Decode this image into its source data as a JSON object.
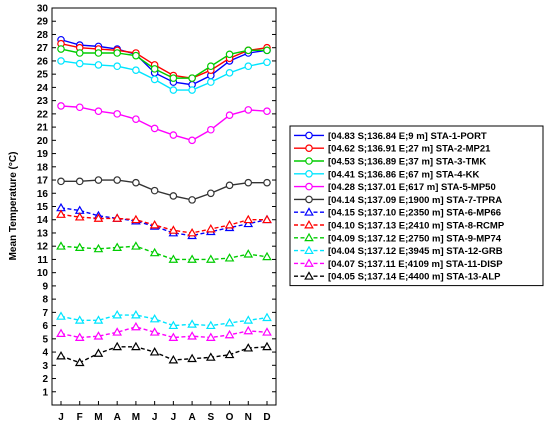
{
  "chart_data": {
    "type": "line",
    "title": "",
    "xlabel": "",
    "ylabel": "Mean Temperature (°C)",
    "ylim": [
      0,
      30
    ],
    "yticks": [
      1,
      2,
      3,
      4,
      5,
      6,
      7,
      8,
      9,
      10,
      11,
      12,
      13,
      14,
      15,
      16,
      17,
      18,
      19,
      20,
      21,
      22,
      23,
      24,
      25,
      26,
      27,
      28,
      29,
      30
    ],
    "categories": [
      "J",
      "F",
      "M",
      "A",
      "M",
      "J",
      "J",
      "A",
      "S",
      "O",
      "N",
      "D"
    ],
    "grid": false,
    "legend_position": "right",
    "series": [
      {
        "name": "[04.83 S;136.84 E;9 m] STA-1-PORT",
        "color": "#0000ff",
        "dashed": false,
        "marker": "circle",
        "values": [
          27.6,
          27.2,
          27.1,
          26.9,
          26.5,
          25.1,
          24.4,
          24.2,
          24.9,
          26.0,
          26.6,
          26.8
        ]
      },
      {
        "name": "[04.62 S;136.91 E;27 m] STA-2-MP21",
        "color": "#ff0000",
        "dashed": false,
        "marker": "circle",
        "values": [
          27.3,
          27.0,
          26.9,
          26.8,
          26.6,
          25.7,
          24.9,
          24.7,
          25.3,
          26.2,
          26.8,
          27.0
        ]
      },
      {
        "name": "[04.53 S;136.89 E;37 m] STA-3-TMK",
        "color": "#00cc00",
        "dashed": false,
        "marker": "circle",
        "values": [
          26.9,
          26.6,
          26.6,
          26.6,
          26.4,
          25.4,
          24.7,
          24.7,
          25.6,
          26.5,
          26.8,
          26.8
        ]
      },
      {
        "name": "[04.41 S;136.86 E;67 m] STA-4-KK",
        "color": "#00e5ff",
        "dashed": false,
        "marker": "circle",
        "values": [
          26.0,
          25.8,
          25.7,
          25.6,
          25.3,
          24.6,
          23.8,
          23.8,
          24.4,
          25.1,
          25.6,
          25.9
        ]
      },
      {
        "name": "[04.28 S;137.01 E;617 m] STA-5-MP50",
        "color": "#ff00ff",
        "dashed": false,
        "marker": "circle",
        "values": [
          22.6,
          22.5,
          22.2,
          22.0,
          21.6,
          20.9,
          20.4,
          20.0,
          20.8,
          21.9,
          22.3,
          22.2
        ]
      },
      {
        "name": "[04.14 S;137.09 E;1900 m] STA-7-TPRA",
        "color": "#333333",
        "dashed": false,
        "marker": "circle",
        "values": [
          16.9,
          16.9,
          17.0,
          17.0,
          16.8,
          16.2,
          15.8,
          15.5,
          16.0,
          16.6,
          16.8,
          16.8
        ]
      },
      {
        "name": "[04.15 S;137.10 E;2350 m] STA-6-MP66",
        "color": "#0000ff",
        "dashed": true,
        "marker": "triangle",
        "values": [
          14.9,
          14.7,
          14.3,
          14.1,
          13.9,
          13.5,
          13.0,
          12.8,
          13.1,
          13.4,
          13.7,
          14.0
        ]
      },
      {
        "name": "[04.10 S;137.13 E;2410 m] STA-8-RCMP",
        "color": "#ff0000",
        "dashed": true,
        "marker": "triangle",
        "values": [
          14.4,
          14.2,
          14.1,
          14.1,
          14.0,
          13.6,
          13.2,
          13.0,
          13.3,
          13.6,
          14.0,
          14.0
        ]
      },
      {
        "name": "[04.09 S;137.12 E;2750 m] STA-9-MP74",
        "color": "#00cc00",
        "dashed": true,
        "marker": "triangle",
        "values": [
          12.0,
          11.9,
          11.8,
          11.9,
          12.0,
          11.5,
          11.0,
          11.0,
          11.0,
          11.1,
          11.4,
          11.2
        ]
      },
      {
        "name": "[04.04 S;137.12 E;3945 m] STA-12-GRB",
        "color": "#00e5ff",
        "dashed": true,
        "marker": "triangle",
        "values": [
          6.7,
          6.4,
          6.4,
          6.8,
          6.8,
          6.5,
          6.0,
          6.1,
          6.0,
          6.2,
          6.4,
          6.6
        ]
      },
      {
        "name": "[04.07 S;137.11 E;4109 m] STA-11-DISP",
        "color": "#ff00ff",
        "dashed": true,
        "marker": "triangle",
        "values": [
          5.4,
          5.1,
          5.2,
          5.5,
          5.9,
          5.5,
          5.1,
          5.2,
          5.1,
          5.3,
          5.6,
          5.5
        ]
      },
      {
        "name": "[04.05 S;137.14 E;4400 m] STA-13-ALP",
        "color": "#000000",
        "dashed": true,
        "marker": "triangle",
        "values": [
          3.7,
          3.2,
          3.9,
          4.4,
          4.4,
          4.0,
          3.4,
          3.5,
          3.6,
          3.8,
          4.3,
          4.4
        ]
      }
    ]
  }
}
